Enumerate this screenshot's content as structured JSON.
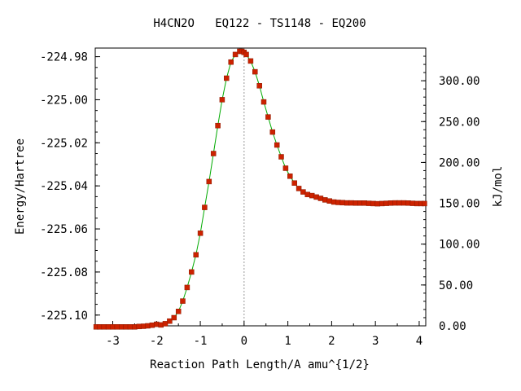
{
  "chart_data": {
    "type": "line",
    "title": "H4CN2O   EQ122 - TS1148 - EQ200",
    "xlabel": "Reaction Path Length/A amu^{1/2}",
    "ylabel": "Energy/Hartree",
    "y2label": "kJ/mol",
    "xlim": [
      -3.4,
      4.15
    ],
    "ylim": [
      -225.105,
      -224.976
    ],
    "y2lim": [
      0,
      340
    ],
    "x_ticks": [
      -3,
      -2,
      -1,
      0,
      1,
      2,
      3,
      4
    ],
    "x_tick_labels": [
      "-3",
      "-2",
      "-1",
      "0",
      "1",
      "2",
      "3",
      "4"
    ],
    "y_ticks": [
      -224.98,
      -225.0,
      -225.02,
      -225.04,
      -225.06,
      -225.08,
      -225.1
    ],
    "y_tick_labels": [
      "-224.98",
      "-225.00",
      "-225.02",
      "-225.04",
      "-225.06",
      "-225.08",
      "-225.10"
    ],
    "y2_ticks": [
      0,
      50,
      100,
      150,
      200,
      250,
      300
    ],
    "y2_tick_labels": [
      "0.00",
      "50.00",
      "100.00",
      "150.00",
      "200.00",
      "250.00",
      "300.00"
    ],
    "ts_line_x": 0,
    "line_color": "#00aa00",
    "marker_color": "#cc2200",
    "ts_line_color": "#999999",
    "series": [
      {
        "x": [
          -3.38,
          -3.3,
          -3.2,
          -3.1,
          -3.0,
          -2.9,
          -2.8,
          -2.7,
          -2.6,
          -2.5,
          -2.4,
          -2.3,
          -2.2,
          -2.1,
          -2.0,
          -1.9,
          -1.8,
          -1.7,
          -1.6,
          -1.5,
          -1.4,
          -1.3,
          -1.2,
          -1.1,
          -1.0,
          -0.9,
          -0.8,
          -0.7,
          -0.6,
          -0.5,
          -0.4,
          -0.3,
          -0.2,
          -0.1,
          -0.05,
          0.0,
          0.05,
          0.15,
          0.25,
          0.35,
          0.45,
          0.55,
          0.65,
          0.75,
          0.85,
          0.95,
          1.05,
          1.15,
          1.25,
          1.35,
          1.45,
          1.55,
          1.65,
          1.75,
          1.85,
          1.95,
          2.05,
          2.15,
          2.25,
          2.35,
          2.45,
          2.55,
          2.65,
          2.75,
          2.85,
          2.95,
          3.05,
          3.15,
          3.25,
          3.35,
          3.45,
          3.55,
          3.65,
          3.75,
          3.85,
          3.95,
          4.05,
          4.12
        ],
        "y": [
          -225.1055,
          -225.1055,
          -225.1055,
          -225.1055,
          -225.1055,
          -225.1055,
          -225.1055,
          -225.1055,
          -225.1055,
          -225.1055,
          -225.1053,
          -225.1052,
          -225.105,
          -225.1047,
          -225.1043,
          -225.1046,
          -225.104,
          -225.1028,
          -225.1012,
          -225.0983,
          -225.0935,
          -225.0872,
          -225.08,
          -225.072,
          -225.062,
          -225.05,
          -225.038,
          -225.025,
          -225.012,
          -225.0,
          -224.99,
          -224.9825,
          -224.979,
          -224.9775,
          -224.9775,
          -224.978,
          -224.979,
          -224.982,
          -224.987,
          -224.9935,
          -225.001,
          -225.008,
          -225.015,
          -225.021,
          -225.0265,
          -225.0318,
          -225.0355,
          -225.0387,
          -225.0412,
          -225.0428,
          -225.044,
          -225.0445,
          -225.0452,
          -225.0458,
          -225.0465,
          -225.047,
          -225.0475,
          -225.0477,
          -225.0478,
          -225.0479,
          -225.0479,
          -225.048,
          -225.048,
          -225.048,
          -225.0481,
          -225.0482,
          -225.0483,
          -225.0482,
          -225.0481,
          -225.048,
          -225.0479,
          -225.0479,
          -225.0479,
          -225.048,
          -225.0481,
          -225.0482,
          -225.0482,
          -225.0482
        ]
      }
    ]
  }
}
